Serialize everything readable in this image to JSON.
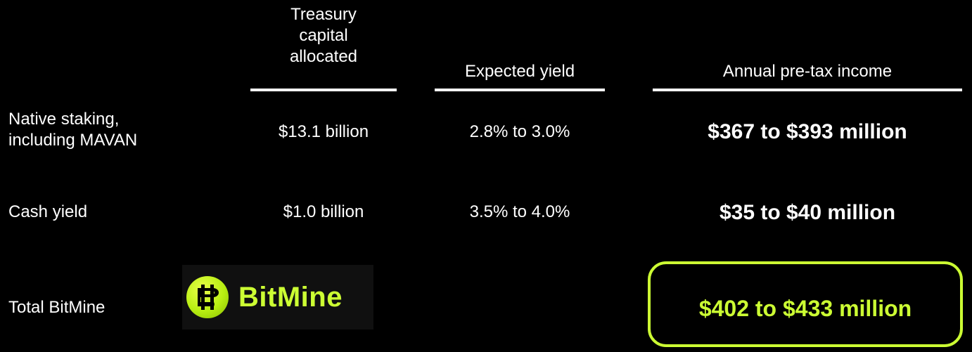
{
  "headers": {
    "treasury_line1": "Treasury",
    "treasury_line2": "capital",
    "treasury_line3": "allocated",
    "expected_yield": "Expected yield",
    "annual_income": "Annual pre-tax income"
  },
  "rows": [
    {
      "label_line1": "Native staking,",
      "label_line2": "including MAVAN",
      "capital": "$13.1 billion",
      "yield": "2.8% to 3.0%",
      "income": "$367 to $393 million"
    },
    {
      "label": "Cash yield",
      "capital": "$1.0 billion",
      "yield": "3.5% to 4.0%",
      "income": "$35 to $40 million"
    }
  ],
  "total": {
    "label": "Total BitMine",
    "income": "$402 to $433 million"
  },
  "logo": {
    "text": "BitMine",
    "icon": "bitmine-b-icon"
  },
  "colors": {
    "background": "#000000",
    "text": "#ffffff",
    "accent": "#ccff33"
  }
}
